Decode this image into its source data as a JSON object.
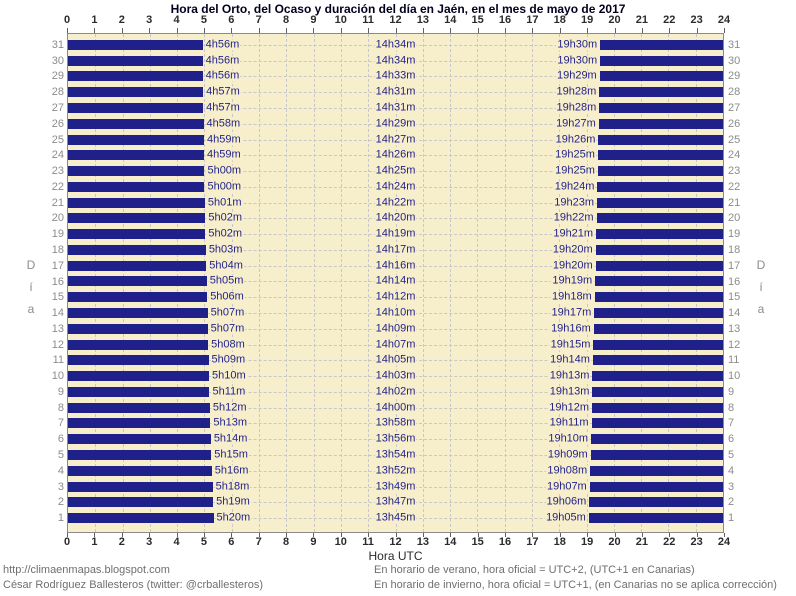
{
  "chart_data": {
    "type": "bar",
    "orientation": "horizontal",
    "title": "Hora del Orto, del Ocaso y duración del día en Jaén, en el mes de mayo de 2017",
    "xlabel": "Hora UTC",
    "ylabel": "Día",
    "xlim": [
      0,
      24
    ],
    "x_ticks": [
      "0",
      "1",
      "2",
      "3",
      "4",
      "5",
      "6",
      "7",
      "8",
      "9",
      "10",
      "11",
      "12",
      "13",
      "14",
      "15",
      "16",
      "17",
      "18",
      "19",
      "20",
      "21",
      "22",
      "23",
      "24"
    ],
    "grid": "dashed",
    "night_bar_color": "#20208a",
    "daylight_bg_color": "#f7eecb",
    "label_color": "#23238b",
    "rows": [
      {
        "day": "31",
        "orto": "4h56m",
        "duracion": "14h34m",
        "ocaso": "19h30m"
      },
      {
        "day": "30",
        "orto": "4h56m",
        "duracion": "14h34m",
        "ocaso": "19h30m"
      },
      {
        "day": "29",
        "orto": "4h56m",
        "duracion": "14h33m",
        "ocaso": "19h29m"
      },
      {
        "day": "28",
        "orto": "4h57m",
        "duracion": "14h31m",
        "ocaso": "19h28m"
      },
      {
        "day": "27",
        "orto": "4h57m",
        "duracion": "14h31m",
        "ocaso": "19h28m"
      },
      {
        "day": "26",
        "orto": "4h58m",
        "duracion": "14h29m",
        "ocaso": "19h27m"
      },
      {
        "day": "25",
        "orto": "4h59m",
        "duracion": "14h27m",
        "ocaso": "19h26m"
      },
      {
        "day": "24",
        "orto": "4h59m",
        "duracion": "14h26m",
        "ocaso": "19h25m"
      },
      {
        "day": "23",
        "orto": "5h00m",
        "duracion": "14h25m",
        "ocaso": "19h25m"
      },
      {
        "day": "22",
        "orto": "5h00m",
        "duracion": "14h24m",
        "ocaso": "19h24m"
      },
      {
        "day": "21",
        "orto": "5h01m",
        "duracion": "14h22m",
        "ocaso": "19h23m"
      },
      {
        "day": "20",
        "orto": "5h02m",
        "duracion": "14h20m",
        "ocaso": "19h22m"
      },
      {
        "day": "19",
        "orto": "5h02m",
        "duracion": "14h19m",
        "ocaso": "19h21m"
      },
      {
        "day": "18",
        "orto": "5h03m",
        "duracion": "14h17m",
        "ocaso": "19h20m"
      },
      {
        "day": "17",
        "orto": "5h04m",
        "duracion": "14h16m",
        "ocaso": "19h20m"
      },
      {
        "day": "16",
        "orto": "5h05m",
        "duracion": "14h14m",
        "ocaso": "19h19m"
      },
      {
        "day": "15",
        "orto": "5h06m",
        "duracion": "14h12m",
        "ocaso": "19h18m"
      },
      {
        "day": "14",
        "orto": "5h07m",
        "duracion": "14h10m",
        "ocaso": "19h17m"
      },
      {
        "day": "13",
        "orto": "5h07m",
        "duracion": "14h09m",
        "ocaso": "19h16m"
      },
      {
        "day": "12",
        "orto": "5h08m",
        "duracion": "14h07m",
        "ocaso": "19h15m"
      },
      {
        "day": "11",
        "orto": "5h09m",
        "duracion": "14h05m",
        "ocaso": "19h14m"
      },
      {
        "day": "10",
        "orto": "5h10m",
        "duracion": "14h03m",
        "ocaso": "19h13m"
      },
      {
        "day": "9",
        "orto": "5h11m",
        "duracion": "14h02m",
        "ocaso": "19h13m"
      },
      {
        "day": "8",
        "orto": "5h12m",
        "duracion": "14h00m",
        "ocaso": "19h12m"
      },
      {
        "day": "7",
        "orto": "5h13m",
        "duracion": "13h58m",
        "ocaso": "19h11m"
      },
      {
        "day": "6",
        "orto": "5h14m",
        "duracion": "13h56m",
        "ocaso": "19h10m"
      },
      {
        "day": "5",
        "orto": "5h15m",
        "duracion": "13h54m",
        "ocaso": "19h09m"
      },
      {
        "day": "4",
        "orto": "5h16m",
        "duracion": "13h52m",
        "ocaso": "19h08m"
      },
      {
        "day": "3",
        "orto": "5h18m",
        "duracion": "13h49m",
        "ocaso": "19h07m"
      },
      {
        "day": "2",
        "orto": "5h19m",
        "duracion": "13h47m",
        "ocaso": "19h06m"
      },
      {
        "day": "1",
        "orto": "5h20m",
        "duracion": "13h45m",
        "ocaso": "19h05m"
      }
    ]
  },
  "footer": {
    "left_line1": "http://climaenmapas.blogspot.com",
    "left_line2": "César Rodríguez Ballesteros (twitter: @crballesteros)",
    "right_line1": "En horario de verano, hora oficial = UTC+2, (UTC+1 en Canarias)",
    "right_line2": "En horario de invierno, hora oficial = UTC+1, (en Canarias no se aplica corrección)"
  }
}
